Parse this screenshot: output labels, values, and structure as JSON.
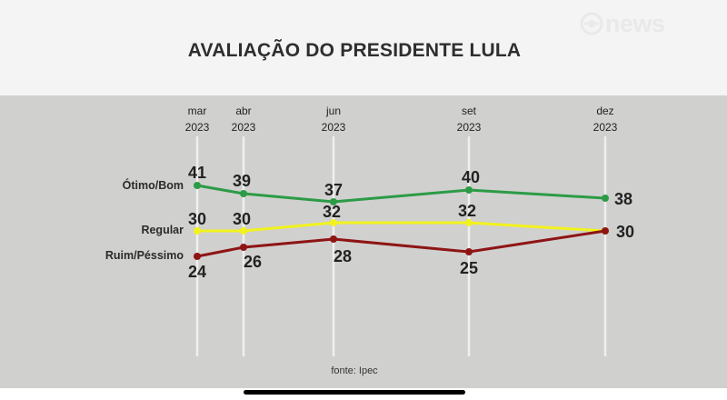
{
  "header": {
    "title": "AVALIAÇÃO DO PRESIDENTE LULA",
    "logo_text": "news"
  },
  "footer": {
    "source": "fonte: Ipec"
  },
  "colors": {
    "otimo_bom": "#2c9b46",
    "regular": "#f2f21e",
    "ruim_pessimo": "#8e1414",
    "panel": "#d0d0cf",
    "header_bg": "#f4f4f4"
  },
  "chart_data": {
    "type": "line",
    "title": "AVALIAÇÃO DO PRESIDENTE LULA",
    "x": [
      "mar 2023",
      "abr 2023",
      "jun 2023",
      "set 2023",
      "dez 2023"
    ],
    "x_months": [
      "mar",
      "abr",
      "jun",
      "set",
      "dez"
    ],
    "x_years": [
      "2023",
      "2023",
      "2023",
      "2023",
      "2023"
    ],
    "series": [
      {
        "name": "Ótimo/Bom",
        "values": [
          41,
          39,
          37,
          40,
          38
        ],
        "color": "#2c9b46"
      },
      {
        "name": "Regular",
        "values": [
          30,
          30,
          32,
          32,
          30
        ],
        "color": "#f2f21e"
      },
      {
        "name": "Ruim/Péssimo",
        "values": [
          24,
          26,
          28,
          25,
          30
        ],
        "color": "#8e1414"
      }
    ],
    "grid": "vertical",
    "legend": "left of lines",
    "source": "fonte: Ipec"
  }
}
